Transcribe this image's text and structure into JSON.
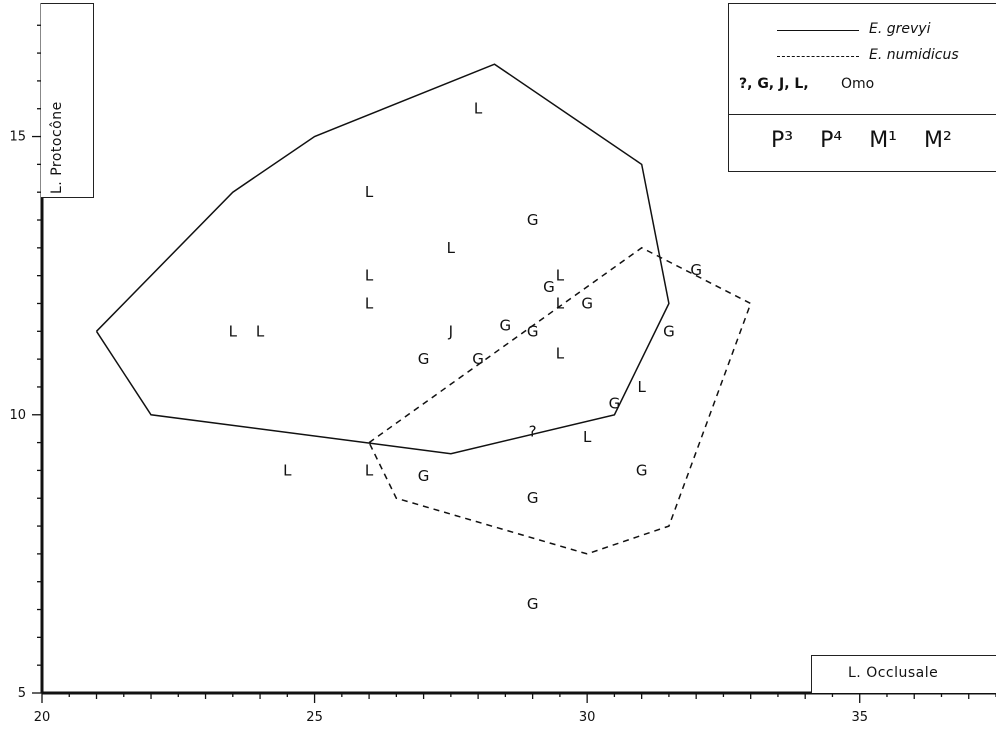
{
  "chart_data": {
    "type": "scatter",
    "xlabel": "L. Occlusale",
    "ylabel": "L. Protocône",
    "xlim": [
      20,
      37.5
    ],
    "ylim": [
      5,
      17.4
    ],
    "x_ticks": [
      20,
      25,
      30,
      35
    ],
    "y_ticks": [
      5,
      10,
      15
    ],
    "x_minor_step": 0.5,
    "y_minor_step": 0.5,
    "legend": {
      "position": "top-right",
      "entries": [
        {
          "label": "E. grevyi",
          "style": "solid"
        },
        {
          "label": "E. numidicus",
          "style": "dashed"
        },
        {
          "label": "Omo",
          "markers": "?, G, J, L,"
        }
      ]
    },
    "teeth": [
      "P³",
      "P⁴",
      "M¹",
      "M²"
    ],
    "hulls": [
      {
        "name": "E. grevyi",
        "style": "solid",
        "points": [
          [
            21,
            11.5
          ],
          [
            23.5,
            14
          ],
          [
            25,
            15
          ],
          [
            28.3,
            16.3
          ],
          [
            31,
            14.5
          ],
          [
            31.5,
            12
          ],
          [
            30.5,
            10
          ],
          [
            27.5,
            9.3
          ],
          [
            22,
            10
          ],
          [
            21,
            11.5
          ]
        ]
      },
      {
        "name": "E. numidicus",
        "style": "dashed",
        "points": [
          [
            26,
            9.5
          ],
          [
            31,
            13
          ],
          [
            33,
            12
          ],
          [
            31.5,
            8
          ],
          [
            30,
            7.5
          ],
          [
            26.5,
            8.5
          ],
          [
            26,
            9.5
          ]
        ]
      }
    ],
    "points": [
      {
        "x": 28,
        "y": 15.5,
        "label": "L"
      },
      {
        "x": 26,
        "y": 14,
        "label": "L"
      },
      {
        "x": 27.5,
        "y": 13,
        "label": "L"
      },
      {
        "x": 26,
        "y": 12.5,
        "label": "L"
      },
      {
        "x": 26,
        "y": 12,
        "label": "L"
      },
      {
        "x": 23.5,
        "y": 11.5,
        "label": "L"
      },
      {
        "x": 24,
        "y": 11.5,
        "label": "L"
      },
      {
        "x": 27.5,
        "y": 11.5,
        "label": "J"
      },
      {
        "x": 27,
        "y": 11,
        "label": "G"
      },
      {
        "x": 28,
        "y": 11,
        "label": "G"
      },
      {
        "x": 28.5,
        "y": 11.6,
        "label": "G"
      },
      {
        "x": 29,
        "y": 11.5,
        "label": "G"
      },
      {
        "x": 29,
        "y": 13.5,
        "label": "G"
      },
      {
        "x": 29.3,
        "y": 12.3,
        "label": "G"
      },
      {
        "x": 29.5,
        "y": 12.5,
        "label": "L"
      },
      {
        "x": 29.5,
        "y": 12,
        "label": "L"
      },
      {
        "x": 30,
        "y": 12,
        "label": "G"
      },
      {
        "x": 29.5,
        "y": 11.1,
        "label": "L"
      },
      {
        "x": 32,
        "y": 12.6,
        "label": "G"
      },
      {
        "x": 31.5,
        "y": 11.5,
        "label": "G"
      },
      {
        "x": 31,
        "y": 10.5,
        "label": "L"
      },
      {
        "x": 30.5,
        "y": 10.2,
        "label": "G"
      },
      {
        "x": 29,
        "y": 9.7,
        "label": "?"
      },
      {
        "x": 30,
        "y": 9.6,
        "label": "L"
      },
      {
        "x": 24.5,
        "y": 9,
        "label": "L"
      },
      {
        "x": 26,
        "y": 9,
        "label": "L"
      },
      {
        "x": 27,
        "y": 8.9,
        "label": "G"
      },
      {
        "x": 31,
        "y": 9,
        "label": "G"
      },
      {
        "x": 29,
        "y": 8.5,
        "label": "G"
      },
      {
        "x": 29,
        "y": 6.6,
        "label": "G"
      }
    ]
  }
}
